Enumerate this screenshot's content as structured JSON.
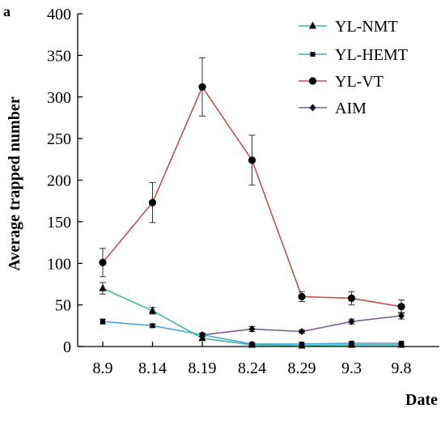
{
  "chart_data": {
    "type": "line",
    "panel_label": "a",
    "title": "",
    "xlabel": "Date",
    "ylabel": "Average trapped number",
    "categories": [
      "8.9",
      "8.14",
      "8.19",
      "8.24",
      "8.29",
      "9.3",
      "9.8"
    ],
    "ylim": [
      0,
      400
    ],
    "yticks": [
      "0",
      "50",
      "100",
      "150",
      "200",
      "250",
      "300",
      "350",
      "400"
    ],
    "grid": false,
    "legend_position": "top-right",
    "series": [
      {
        "name": "YL-NMT",
        "marker": "triangle",
        "color": "#3eb8a0",
        "values": [
          70,
          43,
          10,
          2,
          1,
          2,
          2
        ],
        "errors": [
          7,
          4,
          2,
          1,
          1,
          1,
          1
        ]
      },
      {
        "name": "YL-HEMT",
        "marker": "square",
        "color": "#4aa6d8",
        "values": [
          30,
          25,
          14,
          3,
          3,
          4,
          4
        ],
        "errors": [
          3,
          2,
          2,
          1,
          1,
          1,
          1
        ]
      },
      {
        "name": "YL-VT",
        "marker": "circle",
        "color": "#c0504d",
        "values": [
          101,
          173,
          312,
          224,
          60,
          58,
          48
        ],
        "errors": [
          17,
          24,
          35,
          30,
          6,
          8,
          8
        ]
      },
      {
        "name": "AIM",
        "marker": "diamond",
        "color": "#7e5a9b",
        "values": [
          null,
          null,
          14,
          21,
          18,
          30,
          37
        ],
        "errors": [
          0,
          0,
          2,
          3,
          2,
          3,
          4
        ]
      }
    ]
  }
}
